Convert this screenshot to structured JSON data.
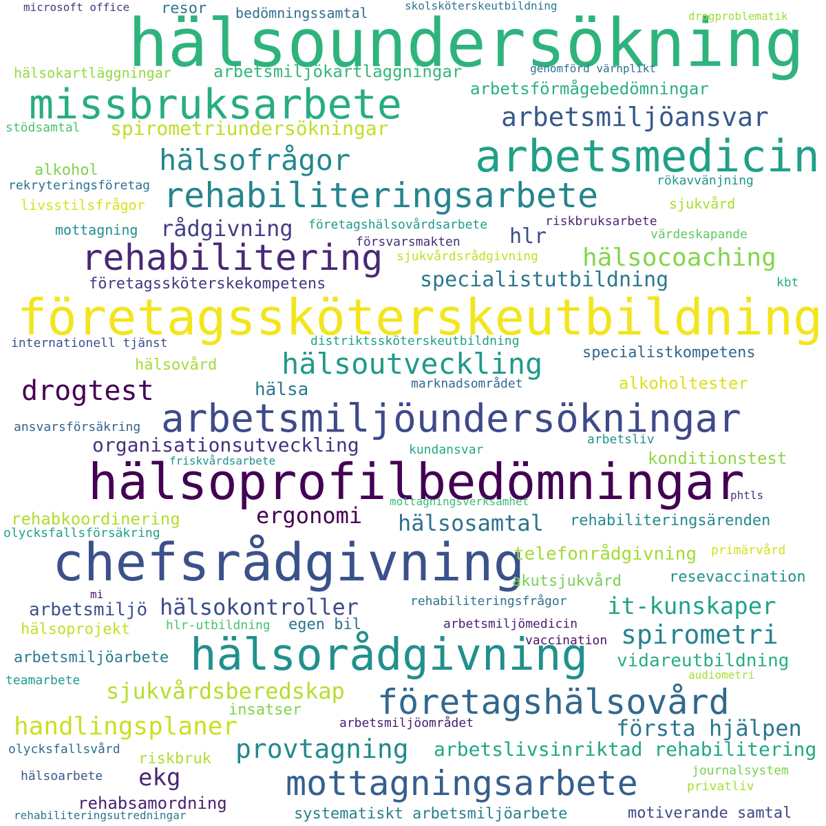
{
  "words": [
    {
      "text": "hälsoundersökning",
      "color": "#2eb37c"
    },
    {
      "text": "företagssköterskeutbildning",
      "color": "#f2e51d"
    },
    {
      "text": "hälsoprofilbedömningar",
      "color": "#440154"
    },
    {
      "text": "chefsrådgivning",
      "color": "#3b518b"
    },
    {
      "text": "missbruksarbete",
      "color": "#27ad81"
    },
    {
      "text": "arbetsmedicin",
      "color": "#1fa088"
    },
    {
      "text": "arbetsmiljöundersökningar",
      "color": "#3e4a89"
    },
    {
      "text": "hälsorådgivning",
      "color": "#21908d"
    },
    {
      "text": "rehabilitering",
      "color": "#482878"
    },
    {
      "text": "rehabiliteringsarbete",
      "color": "#25858e"
    },
    {
      "text": "mottagningsarbete",
      "color": "#355f8d"
    },
    {
      "text": "företagshälsovård",
      "color": "#31688e"
    },
    {
      "text": "hälsoutveckling",
      "color": "#1f9a8a"
    },
    {
      "text": "arbetsmiljöansvar",
      "color": "#38588c"
    },
    {
      "text": "hälsofrågor",
      "color": "#24878e"
    },
    {
      "text": "drogtest",
      "color": "#440154"
    },
    {
      "text": "handlingsplaner",
      "color": "#c8e020"
    },
    {
      "text": "spirometriundersökningar",
      "color": "#bddf26"
    },
    {
      "text": "hälsocoaching",
      "color": "#84d44b"
    },
    {
      "text": "provtagning",
      "color": "#23898e"
    },
    {
      "text": "rådgivning",
      "color": "#433e85"
    },
    {
      "text": "spirometri",
      "color": "#25838e"
    },
    {
      "text": "specialistutbildning",
      "color": "#2a788e"
    },
    {
      "text": "organisationsutveckling",
      "color": "#46307e"
    },
    {
      "text": "sjukvårdsberedskap",
      "color": "#b5de2b"
    },
    {
      "text": "hälsokontroller",
      "color": "#3e4989"
    },
    {
      "text": "it-kunskaper",
      "color": "#20a386"
    },
    {
      "text": "första hjälpen",
      "color": "#2a768e"
    },
    {
      "text": "arbetslivsinriktad rehabilitering",
      "color": "#22a785"
    },
    {
      "text": "ergonomi",
      "color": "#440154"
    },
    {
      "text": "hälsosamtal",
      "color": "#2c728e"
    },
    {
      "text": "arbetsförmågebedömningar",
      "color": "#2ab07f"
    },
    {
      "text": "arbetsmiljökartläggningar",
      "color": "#35b779"
    },
    {
      "text": "rehabsamordning",
      "color": "#481f70"
    },
    {
      "text": "hlr",
      "color": "#3e4c8a"
    },
    {
      "text": "ekg",
      "color": "#482475"
    },
    {
      "text": "hälsa",
      "color": "#29798e"
    },
    {
      "text": "arbetsmiljö",
      "color": "#3b518b"
    },
    {
      "text": "alkoholtester",
      "color": "#d8e219"
    },
    {
      "text": "telefonrådgivning",
      "color": "#a2da37"
    },
    {
      "text": "konditionstest",
      "color": "#8ed645"
    },
    {
      "text": "rehabkoordinering",
      "color": "#b2dd2d"
    },
    {
      "text": "vidareutbildning",
      "color": "#28ae80"
    },
    {
      "text": "motiverande samtal",
      "color": "#3f4788"
    },
    {
      "text": "akutsjukvård",
      "color": "#75d054"
    },
    {
      "text": "resevaccination",
      "color": "#21918c"
    },
    {
      "text": "specialistkompetens",
      "color": "#32658e"
    },
    {
      "text": "egen bil",
      "color": "#2c728e"
    },
    {
      "text": "rehabiliteringsärenden",
      "color": "#238a8d"
    },
    {
      "text": "bedömningssamtal",
      "color": "#2e6f8e"
    },
    {
      "text": "företagssköterskekompetens",
      "color": "#453781"
    },
    {
      "text": "resor",
      "color": "#29798e"
    },
    {
      "text": "insatser",
      "color": "#81d34d"
    },
    {
      "text": "hälsoprojekt",
      "color": "#c2df23"
    },
    {
      "text": "arbetsmiljöarbete",
      "color": "#287c8e"
    },
    {
      "text": "systematiskt arbetsmiljöarbete",
      "color": "#27808e"
    },
    {
      "text": "hälsovård",
      "color": "#a5db36"
    },
    {
      "text": "alkohol",
      "color": "#7fd34e"
    },
    {
      "text": "riskbruk",
      "color": "#b0dd2f"
    },
    {
      "text": "hälsokartläggningar",
      "color": "#95d840"
    },
    {
      "text": "livsstilsfrågor",
      "color": "#d5e21a"
    },
    {
      "text": "sjukvård",
      "color": "#addc30"
    },
    {
      "text": "mottagning",
      "color": "#218e8d"
    },
    {
      "text": "stödsamtal",
      "color": "#48c16e"
    },
    {
      "text": "rekryteringsföretag",
      "color": "#2c718e"
    },
    {
      "text": "internationell tjänst",
      "color": "#3b518b"
    },
    {
      "text": "försvarsmakten",
      "color": "#472c7a"
    },
    {
      "text": "riskbruksarbete",
      "color": "#482979"
    },
    {
      "text": "arbetsmiljömedicin",
      "color": "#482173"
    },
    {
      "text": "arbetsmiljöområdet",
      "color": "#481c6e"
    },
    {
      "text": "hälsoarbete",
      "color": "#39568c"
    },
    {
      "text": "olycksfallsvård",
      "color": "#2e6e8e"
    },
    {
      "text": "journalsystem",
      "color": "#7ad151"
    },
    {
      "text": "privatliv",
      "color": "#aadc32"
    },
    {
      "text": "primärvård",
      "color": "#d0e11c"
    },
    {
      "text": "mi",
      "color": "#481769"
    },
    {
      "text": "vaccination",
      "color": "#481467"
    },
    {
      "text": "audiometri",
      "color": "#a8db34"
    },
    {
      "text": "teamarbete",
      "color": "#1e9b8a"
    },
    {
      "text": "hlr-utbildning",
      "color": "#48c16e"
    },
    {
      "text": "rehabiliteringsfrågor",
      "color": "#2d718e"
    },
    {
      "text": "olycksfallsförsäkring",
      "color": "#1fa188"
    },
    {
      "text": "mottagningsverksamhet",
      "color": "#3cbb75"
    },
    {
      "text": "friskvårdsarbete",
      "color": "#21918c"
    },
    {
      "text": "kundansvar",
      "color": "#22a884"
    },
    {
      "text": "arbetsliv",
      "color": "#20928c"
    },
    {
      "text": "ansvarsförsäkring",
      "color": "#33638d"
    },
    {
      "text": "marknadsområdet",
      "color": "#31688e"
    },
    {
      "text": "distriktssköterskeutbildning",
      "color": "#1fa187"
    },
    {
      "text": "kbt",
      "color": "#26ad81"
    },
    {
      "text": "värdeskapande",
      "color": "#5ec962"
    },
    {
      "text": "sjukvårdsrådgivning",
      "color": "#c0df25"
    },
    {
      "text": "företagshälsovårdsarbete",
      "color": "#1e9c89"
    },
    {
      "text": "rökavvänjning",
      "color": "#1f968b"
    },
    {
      "text": "phtls",
      "color": "#46337e"
    },
    {
      "text": "rehabiliteringsutredningar",
      "color": "#2b758e"
    },
    {
      "text": "microsoft office",
      "color": "#443a83"
    },
    {
      "text": "skolsköterskeutbildning",
      "color": "#2a778e"
    },
    {
      "text": "drogproblematik",
      "color": "#a0da39"
    },
    {
      "text": "genomförd värnplikt",
      "color": "#2d718e"
    }
  ]
}
